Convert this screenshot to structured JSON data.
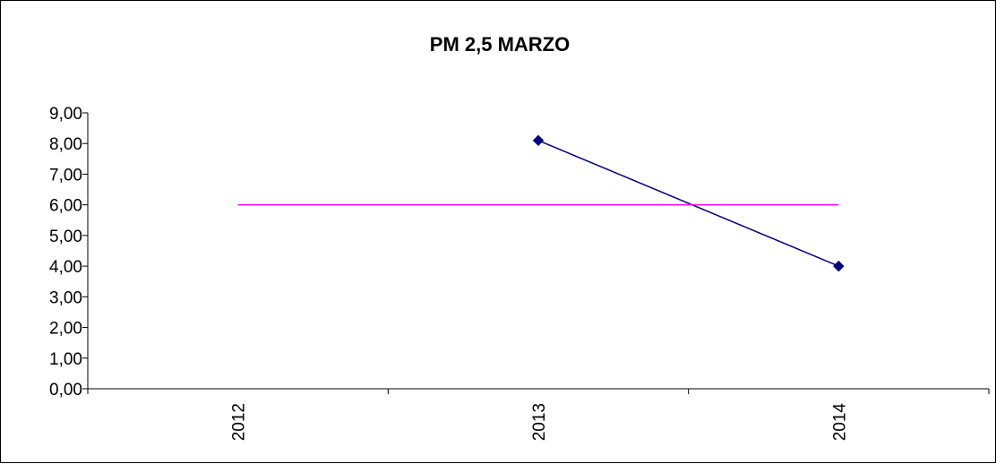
{
  "chart_data": {
    "type": "line",
    "title": "PM 2,5 MARZO",
    "xlabel": "",
    "ylabel": "",
    "categories": [
      "2012",
      "2013",
      "2014"
    ],
    "ylim": [
      0,
      9
    ],
    "y_ticks": [
      "0,00",
      "1,00",
      "2,00",
      "3,00",
      "4,00",
      "5,00",
      "6,00",
      "7,00",
      "8,00",
      "9,00"
    ],
    "grid": false,
    "legend": "none",
    "series": [
      {
        "values": [
          null,
          8.1,
          4.0
        ],
        "color": "#000080",
        "marker": "diamond"
      },
      {
        "values": [
          6.0,
          6.0,
          6.0
        ],
        "color": "#FF00FF",
        "marker": "none"
      }
    ]
  }
}
